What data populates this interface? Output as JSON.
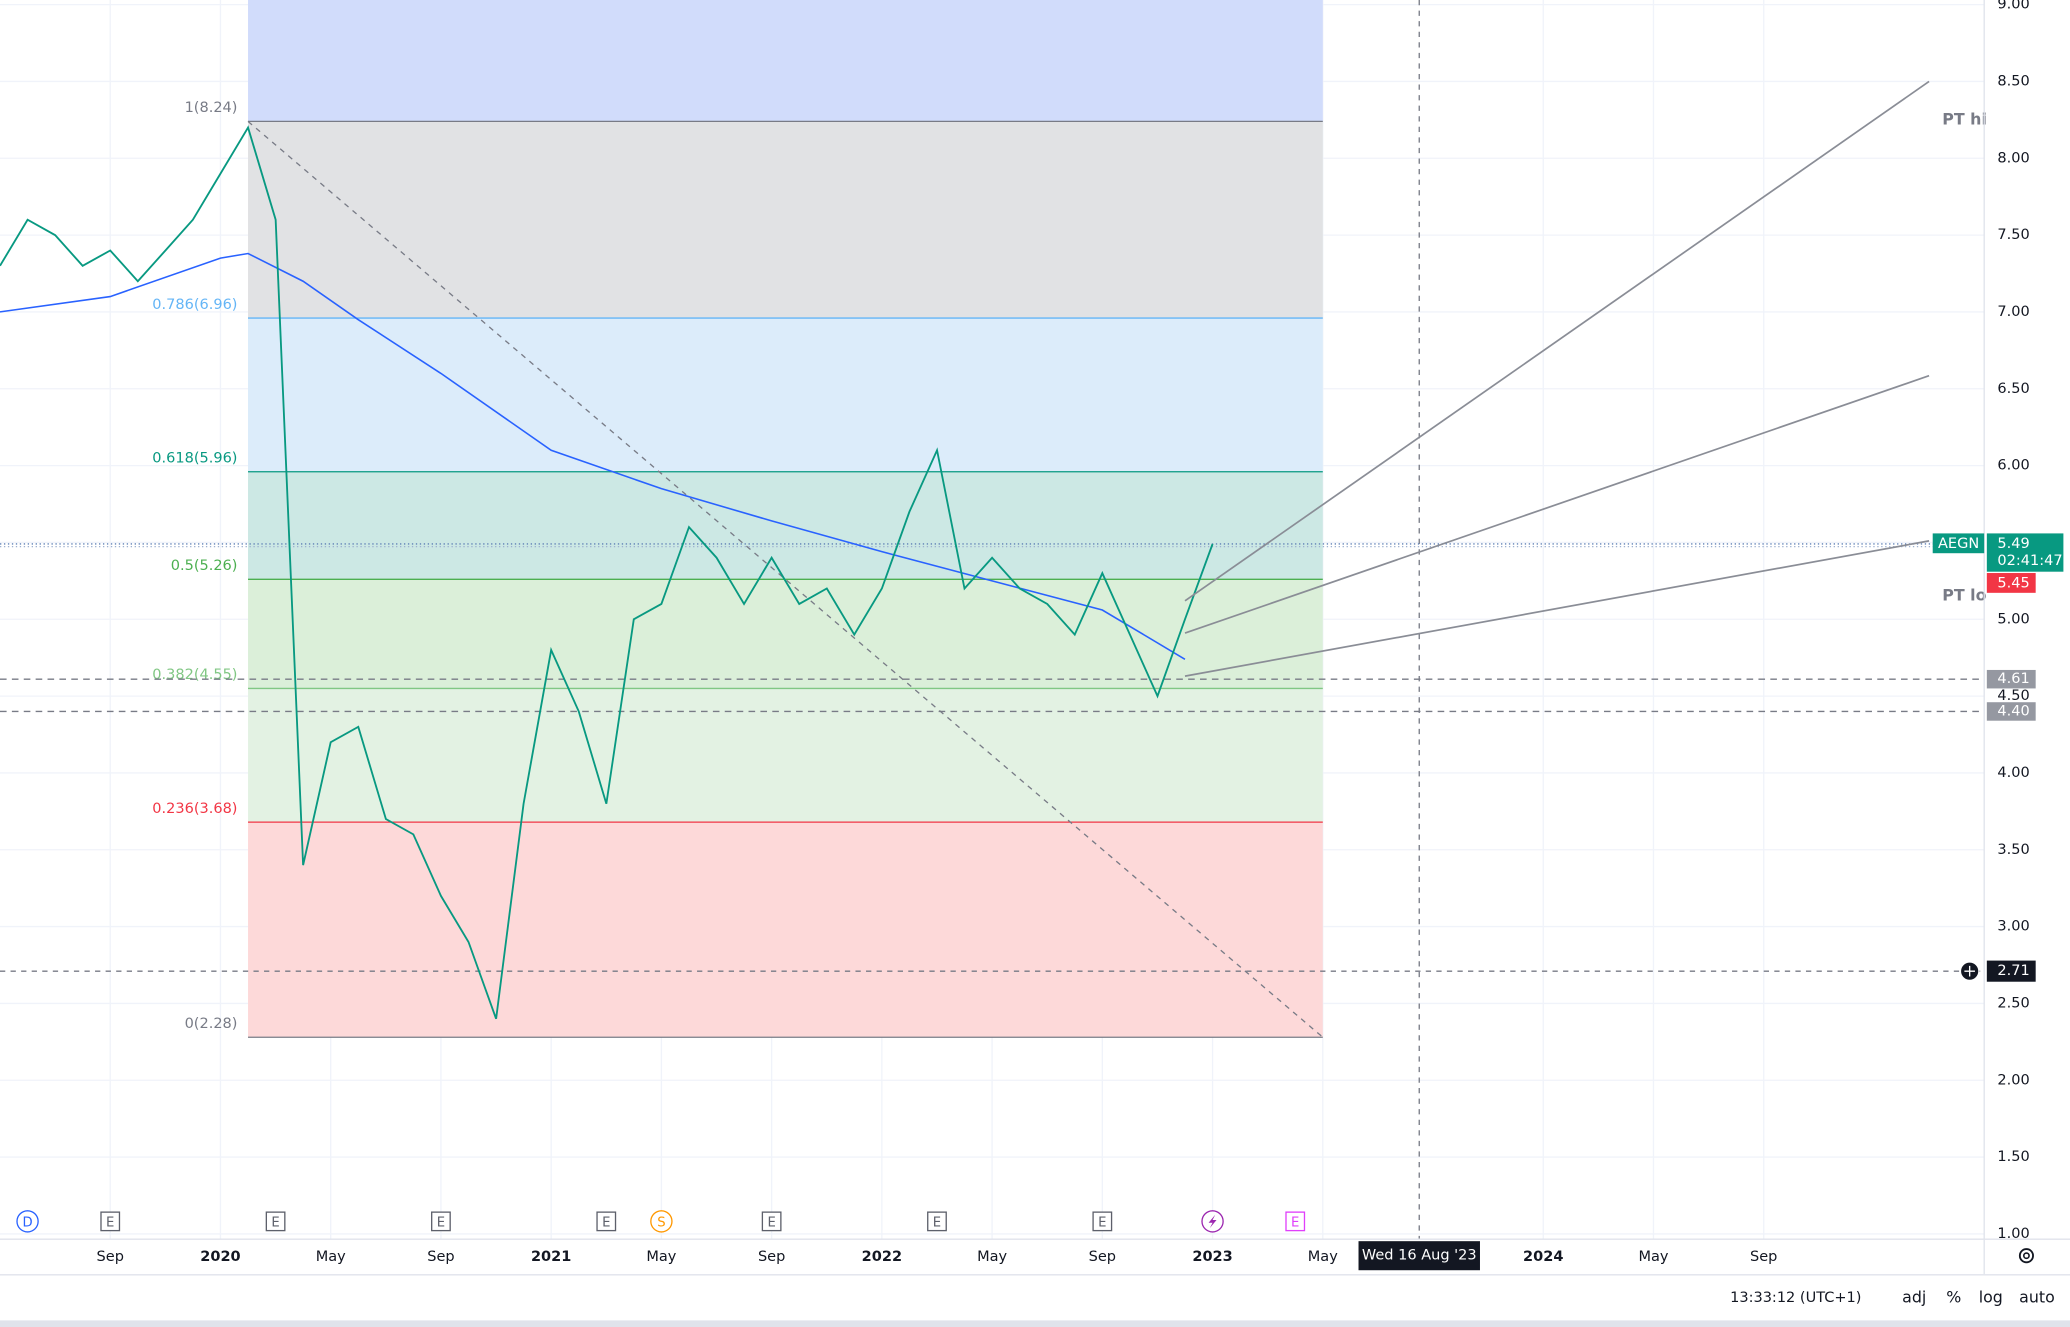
{
  "chart_data": {
    "type": "line",
    "symbol": "AEGN",
    "xlim": [
      "2019-05",
      "2025-05"
    ],
    "ylim": [
      0.97,
      9.03
    ],
    "grid": true,
    "yticks": [
      {
        "value": 1,
        "label": "1.00"
      },
      {
        "value": 1.5,
        "label": "1.50"
      },
      {
        "value": 2,
        "label": "2.00"
      },
      {
        "value": 2.5,
        "label": "2.50"
      },
      {
        "value": 3,
        "label": "3.00"
      },
      {
        "value": 3.5,
        "label": "3.50"
      },
      {
        "value": 4,
        "label": "4.00"
      },
      {
        "value": 4.5,
        "label": "4.50"
      },
      {
        "value": 5,
        "label": "5.00"
      },
      {
        "value": 5.5,
        "label": "5.50"
      },
      {
        "value": 6,
        "label": "6.00"
      },
      {
        "value": 6.5,
        "label": "6.50"
      },
      {
        "value": 7,
        "label": "7.00"
      },
      {
        "value": 7.5,
        "label": "7.50"
      },
      {
        "value": 8,
        "label": "8.00"
      },
      {
        "value": 8.5,
        "label": "8.50"
      },
      {
        "value": 9,
        "label": "9.00"
      }
    ],
    "xticks": [
      {
        "value": "2019-09",
        "label": "Sep"
      },
      {
        "value": "2020-01",
        "label": "2020"
      },
      {
        "value": "2020-05",
        "label": "May"
      },
      {
        "value": "2020-09",
        "label": "Sep"
      },
      {
        "value": "2021-01",
        "label": "2021"
      },
      {
        "value": "2021-05",
        "label": "May"
      },
      {
        "value": "2021-09",
        "label": "Sep"
      },
      {
        "value": "2022-01",
        "label": "2022"
      },
      {
        "value": "2022-05",
        "label": "May"
      },
      {
        "value": "2022-09",
        "label": "Sep"
      },
      {
        "value": "2023-01",
        "label": "2023"
      },
      {
        "value": "2023-05",
        "label": "May"
      },
      {
        "value": "2024-01",
        "label": "2024"
      },
      {
        "value": "2024-05",
        "label": "May"
      },
      {
        "value": "2024-09",
        "label": "Sep"
      }
    ],
    "x": [
      "2019-05",
      "2019-06",
      "2019-07",
      "2019-08",
      "2019-09",
      "2019-10",
      "2019-11",
      "2019-12",
      "2020-01",
      "2020-02",
      "2020-03",
      "2020-04",
      "2020-05",
      "2020-06",
      "2020-07",
      "2020-08",
      "2020-09",
      "2020-10",
      "2020-11",
      "2020-12",
      "2021-01",
      "2021-02",
      "2021-03",
      "2021-04",
      "2021-05",
      "2021-06",
      "2021-07",
      "2021-08",
      "2021-09",
      "2021-10",
      "2021-11",
      "2021-12",
      "2022-01",
      "2022-02",
      "2022-03",
      "2022-04",
      "2022-05",
      "2022-06",
      "2022-07",
      "2022-08",
      "2022-09",
      "2022-10",
      "2022-11",
      "2022-12",
      "2023-01"
    ],
    "series": [
      {
        "color": "#089981",
        "values": [
          7.3,
          7.6,
          7.5,
          7.3,
          7.4,
          7.2,
          7.4,
          7.6,
          7.9,
          8.2,
          7.6,
          3.4,
          4.2,
          4.3,
          3.7,
          3.6,
          3.2,
          2.9,
          2.4,
          3.8,
          4.8,
          4.4,
          3.8,
          5.0,
          5.1,
          5.6,
          5.4,
          5.1,
          5.4,
          5.1,
          5.2,
          4.9,
          5.2,
          5.7,
          6.1,
          5.2,
          5.4,
          5.2,
          5.1,
          4.9,
          5.3,
          4.9,
          4.5,
          5.0,
          5.49
        ]
      }
    ],
    "ma": {
      "color": "#2962ff",
      "x": [
        "2019-05",
        "2019-09",
        "2020-01",
        "2020-02",
        "2020-04",
        "2020-06",
        "2020-09",
        "2021-01",
        "2021-05",
        "2021-09",
        "2022-01",
        "2022-05",
        "2022-09",
        "2022-12"
      ],
      "values": [
        7.0,
        7.1,
        7.35,
        7.38,
        7.2,
        6.95,
        6.6,
        6.1,
        5.85,
        5.64,
        5.44,
        5.25,
        5.06,
        4.74
      ]
    },
    "fib": {
      "x": [
        "2020-02",
        "2023-05"
      ],
      "top_fill": "#d1dcfb",
      "levels": [
        {
          "label": "1(8.24)",
          "value": 8.24,
          "color": "#787b86",
          "fill": "#e1e2e4"
        },
        {
          "label": "0.786(6.96)",
          "value": 6.96,
          "color": "#64b5f6",
          "fill": "#dcecfa"
        },
        {
          "label": "0.618(5.96)",
          "value": 5.96,
          "color": "#089981",
          "fill": "#cce8e4"
        },
        {
          "label": "0.5(5.26)",
          "value": 5.26,
          "color": "#4caf50",
          "fill": "#dbefd9"
        },
        {
          "label": "0.382(4.55)",
          "value": 4.55,
          "color": "#81c784",
          "fill": "#e3f2e3"
        },
        {
          "label": "0.236(3.68)",
          "value": 3.68,
          "color": "#f23645",
          "fill": "#fdd9d9"
        },
        {
          "label": "0(2.28)",
          "value": 2.28,
          "color": "#787b86"
        }
      ]
    },
    "trend_lines": [
      {
        "x": [
          "2022-12",
          "2025-03"
        ],
        "y": [
          5.12,
          8.5
        ]
      },
      {
        "x": [
          "2022-12",
          "2025-03"
        ],
        "y": [
          4.91,
          6.585
        ]
      },
      {
        "x": [
          "2022-12",
          "2025-03"
        ],
        "y": [
          4.63,
          5.51
        ]
      }
    ],
    "annotations": [
      {
        "text": "PT hi",
        "x": "2025-03",
        "y": 8.25
      },
      {
        "text": "PT lo",
        "x": "2025-03",
        "y": 5.15
      }
    ],
    "hlines": [
      {
        "value": 4.61
      },
      {
        "value": 4.4,
        "label": "4.40"
      }
    ],
    "last_price": {
      "value": 5.49,
      "countdown": "02:41:47"
    },
    "prev_close": 5.45,
    "crosshair": {
      "x": "2023-08-16",
      "x_label": "Wed 16 Aug '23",
      "y": 2.71
    },
    "events": [
      {
        "x": "2019-06",
        "label": "D",
        "shape": "circle",
        "color": "#2962ff"
      },
      {
        "x": "2019-09",
        "label": "E",
        "shape": "square",
        "color": "#5d606b"
      },
      {
        "x": "2020-03",
        "label": "E",
        "shape": "square",
        "color": "#5d606b"
      },
      {
        "x": "2020-09",
        "label": "E",
        "shape": "square",
        "color": "#5d606b"
      },
      {
        "x": "2021-03",
        "label": "E",
        "shape": "square",
        "color": "#5d606b"
      },
      {
        "x": "2021-05",
        "label": "S",
        "shape": "circle",
        "color": "#ff9800"
      },
      {
        "x": "2021-09",
        "label": "E",
        "shape": "square",
        "color": "#5d606b"
      },
      {
        "x": "2022-03",
        "label": "E",
        "shape": "square",
        "color": "#5d606b"
      },
      {
        "x": "2022-09",
        "label": "E",
        "shape": "square",
        "color": "#5d606b"
      },
      {
        "x": "2023-01",
        "shape": "bolt",
        "color": "#9c27b0"
      },
      {
        "x": "2023-04",
        "label": "E",
        "shape": "square",
        "color": "#e040fb"
      }
    ]
  },
  "status_bar": {
    "time": "13:33:12 (UTC+1)",
    "buttons": [
      "adj",
      "%",
      "log",
      "auto"
    ]
  }
}
